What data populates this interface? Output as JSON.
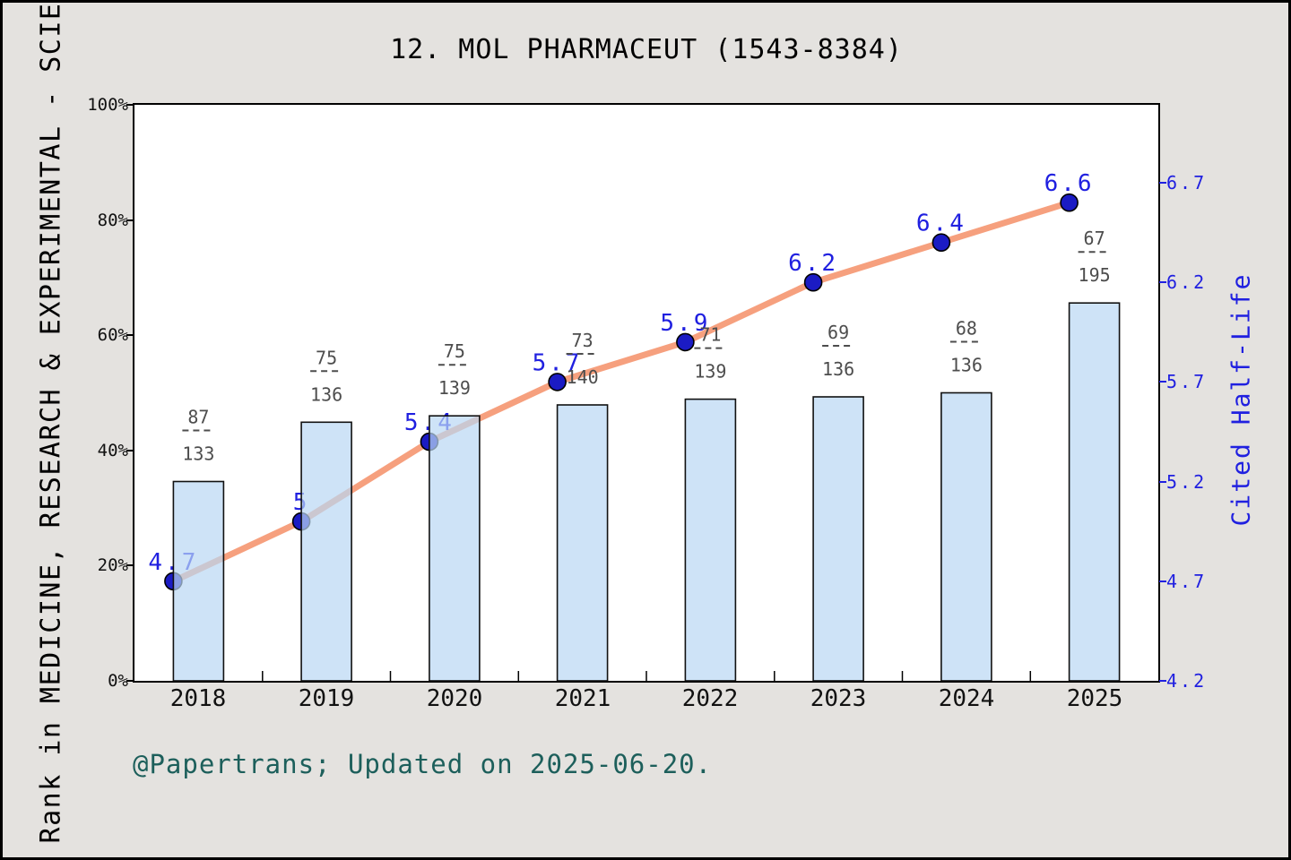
{
  "title": "12. MOL PHARMACEUT (1543-8384)",
  "footer": "@Papertrans; Updated on 2025-06-20.",
  "chart_data": {
    "type": "bar",
    "subtype": "bar-and-line-dual-axis",
    "title": "12. MOL PHARMACEUT (1543-8384)",
    "categories": [
      "2018",
      "2019",
      "2020",
      "2021",
      "2022",
      "2023",
      "2024",
      "2025"
    ],
    "series": [
      {
        "name": "Rank percentile in category (bars, left axis)",
        "type": "bar",
        "axis": "left",
        "unit": "%",
        "values": [
          34.6,
          44.9,
          46.0,
          47.9,
          48.9,
          49.3,
          50.0,
          65.6
        ],
        "rank_fractions": [
          {
            "numerator": "87",
            "denominator": "133"
          },
          {
            "numerator": "75",
            "denominator": "136"
          },
          {
            "numerator": "75",
            "denominator": "139"
          },
          {
            "numerator": "73",
            "denominator": "140"
          },
          {
            "numerator": "71",
            "denominator": "139"
          },
          {
            "numerator": "69",
            "denominator": "136"
          },
          {
            "numerator": "68",
            "denominator": "136"
          },
          {
            "numerator": "67",
            "denominator": "195"
          }
        ]
      },
      {
        "name": "Cited Half-Life (line, right axis)",
        "type": "line",
        "axis": "right",
        "values": [
          4.7,
          5,
          5.4,
          5.7,
          5.9,
          6.2,
          6.4,
          6.6
        ],
        "point_labels": [
          "4.7",
          "5",
          "5.4",
          "5.7",
          "5.9",
          "6.2",
          "6.4",
          "6.6"
        ]
      }
    ],
    "left_axis": {
      "label": "Rank in MEDICINE, RESEARCH & EXPERIMENTAL - SCIE",
      "tick_labels": [
        "0%",
        "20%",
        "40%",
        "60%",
        "80%",
        "100%"
      ],
      "tick_values": [
        0,
        20,
        40,
        60,
        80,
        100
      ],
      "range": [
        0,
        100
      ]
    },
    "right_axis": {
      "label": "Cited Half-Life",
      "tick_labels": [
        "4.2",
        "4.7",
        "5.2",
        "5.7",
        "6.2",
        "6.7"
      ],
      "tick_values": [
        4.2,
        4.7,
        5.2,
        5.7,
        6.2,
        6.7
      ]
    },
    "grid": false,
    "legend": "none",
    "colors": {
      "background": "#e4e2df",
      "plot_background": "#ffffff",
      "bar_fill": "#c9e1f6",
      "bar_fill_rgba": "rgba(185,215,243,0.7)",
      "bar_edge": "#111111",
      "line": "#f6a07e",
      "marker": "#1b1bc4",
      "marker_edge": "#000000",
      "blue_text": "#2020e0",
      "fraction_text": "#4d4d4d",
      "footer_text": "#1d5f5b",
      "axis_frame": "#000000"
    }
  }
}
